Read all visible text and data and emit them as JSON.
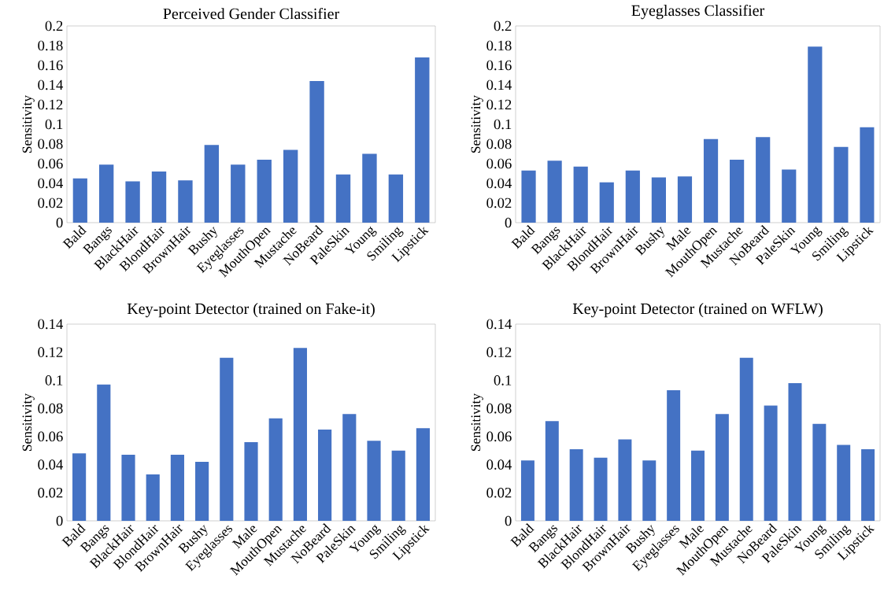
{
  "chart_data": [
    {
      "type": "bar",
      "title": "Perceived Gender Classifier",
      "ylabel": "Sensitivity",
      "color": "#4472c4",
      "categories": [
        "Bald",
        "Bangs",
        "BlackHair",
        "BlondHair",
        "BrownHair",
        "Bushy",
        "Eyeglasses",
        "MouthOpen",
        "Mustache",
        "NoBeard",
        "PaleSkin",
        "Young",
        "Smiling",
        "Lipstick"
      ],
      "values": [
        0.045,
        0.059,
        0.042,
        0.052,
        0.043,
        0.079,
        0.059,
        0.064,
        0.074,
        0.144,
        0.049,
        0.07,
        0.049,
        0.168
      ],
      "ylim": [
        0,
        0.2
      ],
      "yticks": [
        0,
        0.02,
        0.04,
        0.06,
        0.08,
        0.1,
        0.12,
        0.14,
        0.16,
        0.18,
        0.2
      ]
    },
    {
      "type": "bar",
      "title": "Eyeglasses Classifier",
      "ylabel": "Sensitivity",
      "color": "#4472c4",
      "categories": [
        "Bald",
        "Bangs",
        "BlackHair",
        "BlondHair",
        "BrownHair",
        "Bushy",
        "Male",
        "MouthOpen",
        "Mustache",
        "NoBeard",
        "PaleSkin",
        "Young",
        "Smiling",
        "Lipstick"
      ],
      "values": [
        0.053,
        0.063,
        0.057,
        0.041,
        0.053,
        0.046,
        0.047,
        0.085,
        0.064,
        0.087,
        0.054,
        0.179,
        0.077,
        0.097
      ],
      "ylim": [
        0,
        0.2
      ],
      "yticks": [
        0,
        0.02,
        0.04,
        0.06,
        0.08,
        0.1,
        0.12,
        0.14,
        0.16,
        0.18,
        0.2
      ]
    },
    {
      "type": "bar",
      "title": "Key-point Detector (trained on Fake-it)",
      "ylabel": "Sensitivity",
      "color": "#4472c4",
      "categories": [
        "Bald",
        "Bangs",
        "BlackHair",
        "BlondHair",
        "BrownHair",
        "Bushy",
        "Eyeglasses",
        "Male",
        "MouthOpen",
        "Mustache",
        "NoBeard",
        "PaleSkin",
        "Young",
        "Smiling",
        "Lipstick"
      ],
      "values": [
        0.048,
        0.097,
        0.047,
        0.033,
        0.047,
        0.042,
        0.116,
        0.056,
        0.073,
        0.123,
        0.065,
        0.076,
        0.057,
        0.05,
        0.066
      ],
      "ylim": [
        0,
        0.14
      ],
      "yticks": [
        0,
        0.02,
        0.04,
        0.06,
        0.08,
        0.1,
        0.12,
        0.14
      ]
    },
    {
      "type": "bar",
      "title": "Key-point Detector (trained on WFLW)",
      "ylabel": "Sensitivity",
      "color": "#4472c4",
      "categories": [
        "Bald",
        "Bangs",
        "BlackHair",
        "BlondHair",
        "BrownHair",
        "Bushy",
        "Eyeglasses",
        "Male",
        "MouthOpen",
        "Mustache",
        "NoBeard",
        "PaleSkin",
        "Young",
        "Smiling",
        "Lipstick"
      ],
      "values": [
        0.043,
        0.071,
        0.051,
        0.045,
        0.058,
        0.043,
        0.093,
        0.05,
        0.076,
        0.116,
        0.082,
        0.098,
        0.069,
        0.054,
        0.051
      ],
      "ylim": [
        0,
        0.14
      ],
      "yticks": [
        0,
        0.02,
        0.04,
        0.06,
        0.08,
        0.1,
        0.12,
        0.14
      ]
    }
  ]
}
